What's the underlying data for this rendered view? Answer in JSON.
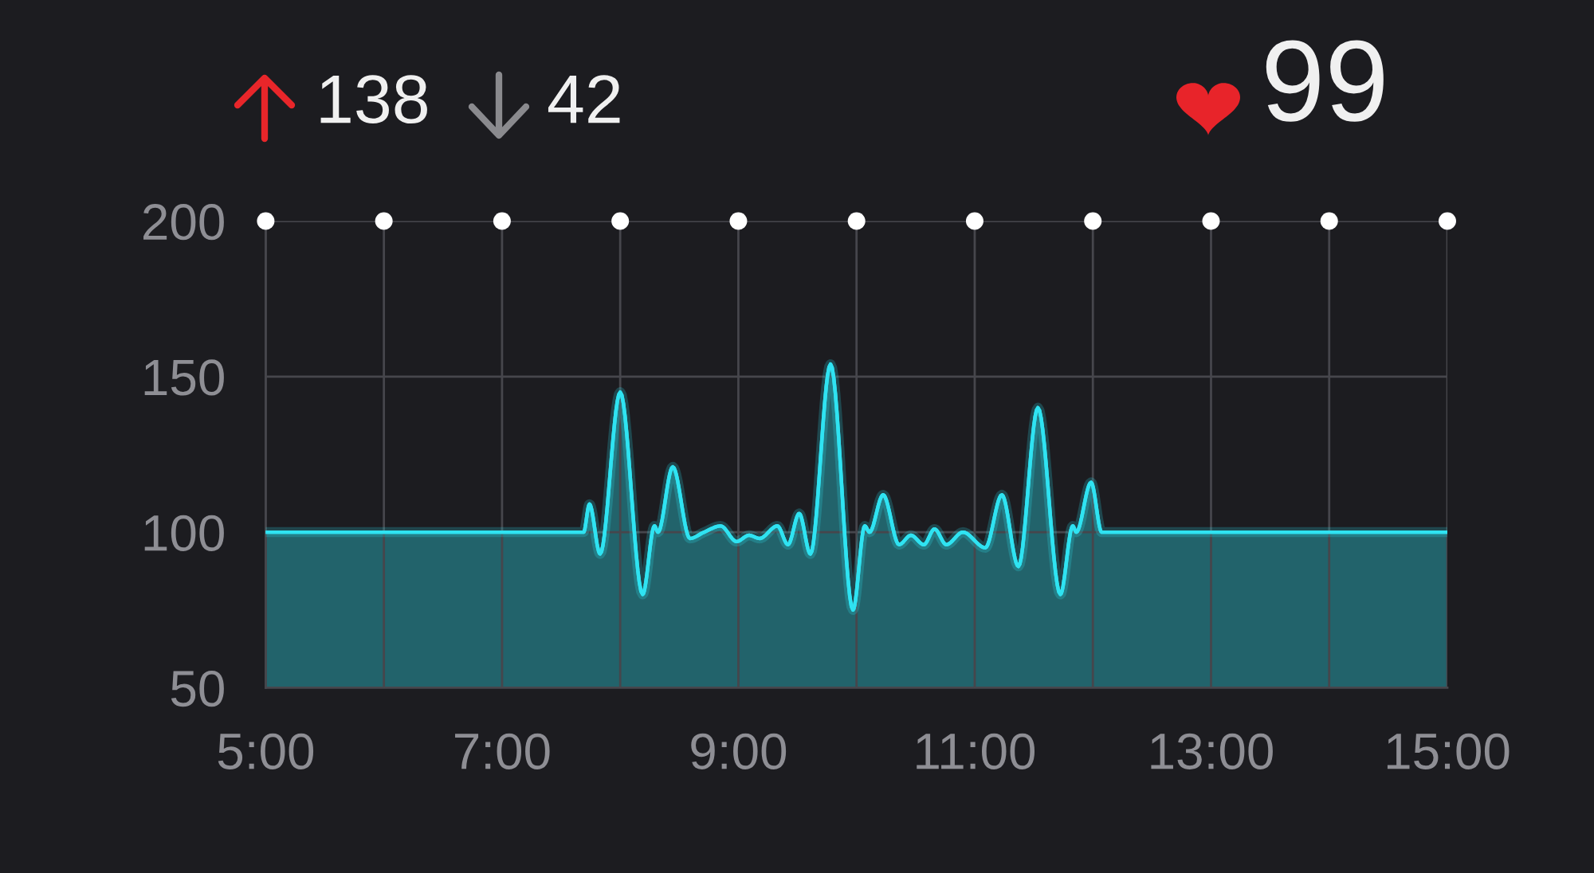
{
  "chart_data": {
    "type": "area",
    "x": [
      5.0,
      7.69,
      7.74,
      7.83,
      8.0,
      8.19,
      8.29,
      8.32,
      8.445,
      8.59,
      8.71,
      8.85,
      8.985,
      9.09,
      9.18,
      9.33,
      9.42,
      9.515,
      9.61,
      9.78,
      9.97,
      10.07,
      10.11,
      10.225,
      10.36,
      10.46,
      10.57,
      10.66,
      10.76,
      10.9,
      11.09,
      11.23,
      11.37,
      11.535,
      11.725,
      11.83,
      11.86,
      11.985,
      12.075,
      15.0
    ],
    "series": [
      {
        "color": "#2fe3f2",
        "values": [
          100,
          100,
          109,
          93,
          145,
          80,
          102,
          100,
          121,
          98,
          100,
          102,
          97,
          99,
          98,
          102,
          96,
          106,
          93,
          154,
          75,
          102,
          100,
          112,
          96,
          99,
          96,
          101,
          96,
          100,
          95,
          112,
          89,
          140,
          80,
          102,
          100,
          116,
          100,
          100
        ]
      }
    ],
    "xlim": [
      5,
      15
    ],
    "xticks": [
      {
        "value": 5,
        "label": "5:00"
      },
      {
        "value": 6,
        "label": null
      },
      {
        "value": 7,
        "label": "7:00"
      },
      {
        "value": 8,
        "label": null
      },
      {
        "value": 9,
        "label": "9:00"
      },
      {
        "value": 10,
        "label": null
      },
      {
        "value": 11,
        "label": "11:00"
      },
      {
        "value": 12,
        "label": null
      },
      {
        "value": 13,
        "label": "13:00"
      },
      {
        "value": 14,
        "label": null
      },
      {
        "value": 15,
        "label": "15:00"
      }
    ],
    "ylim": [
      50,
      200
    ],
    "yticks": [
      50,
      100,
      150,
      200
    ],
    "grid": true,
    "annotations": [
      "138",
      "42",
      "99"
    ]
  }
}
